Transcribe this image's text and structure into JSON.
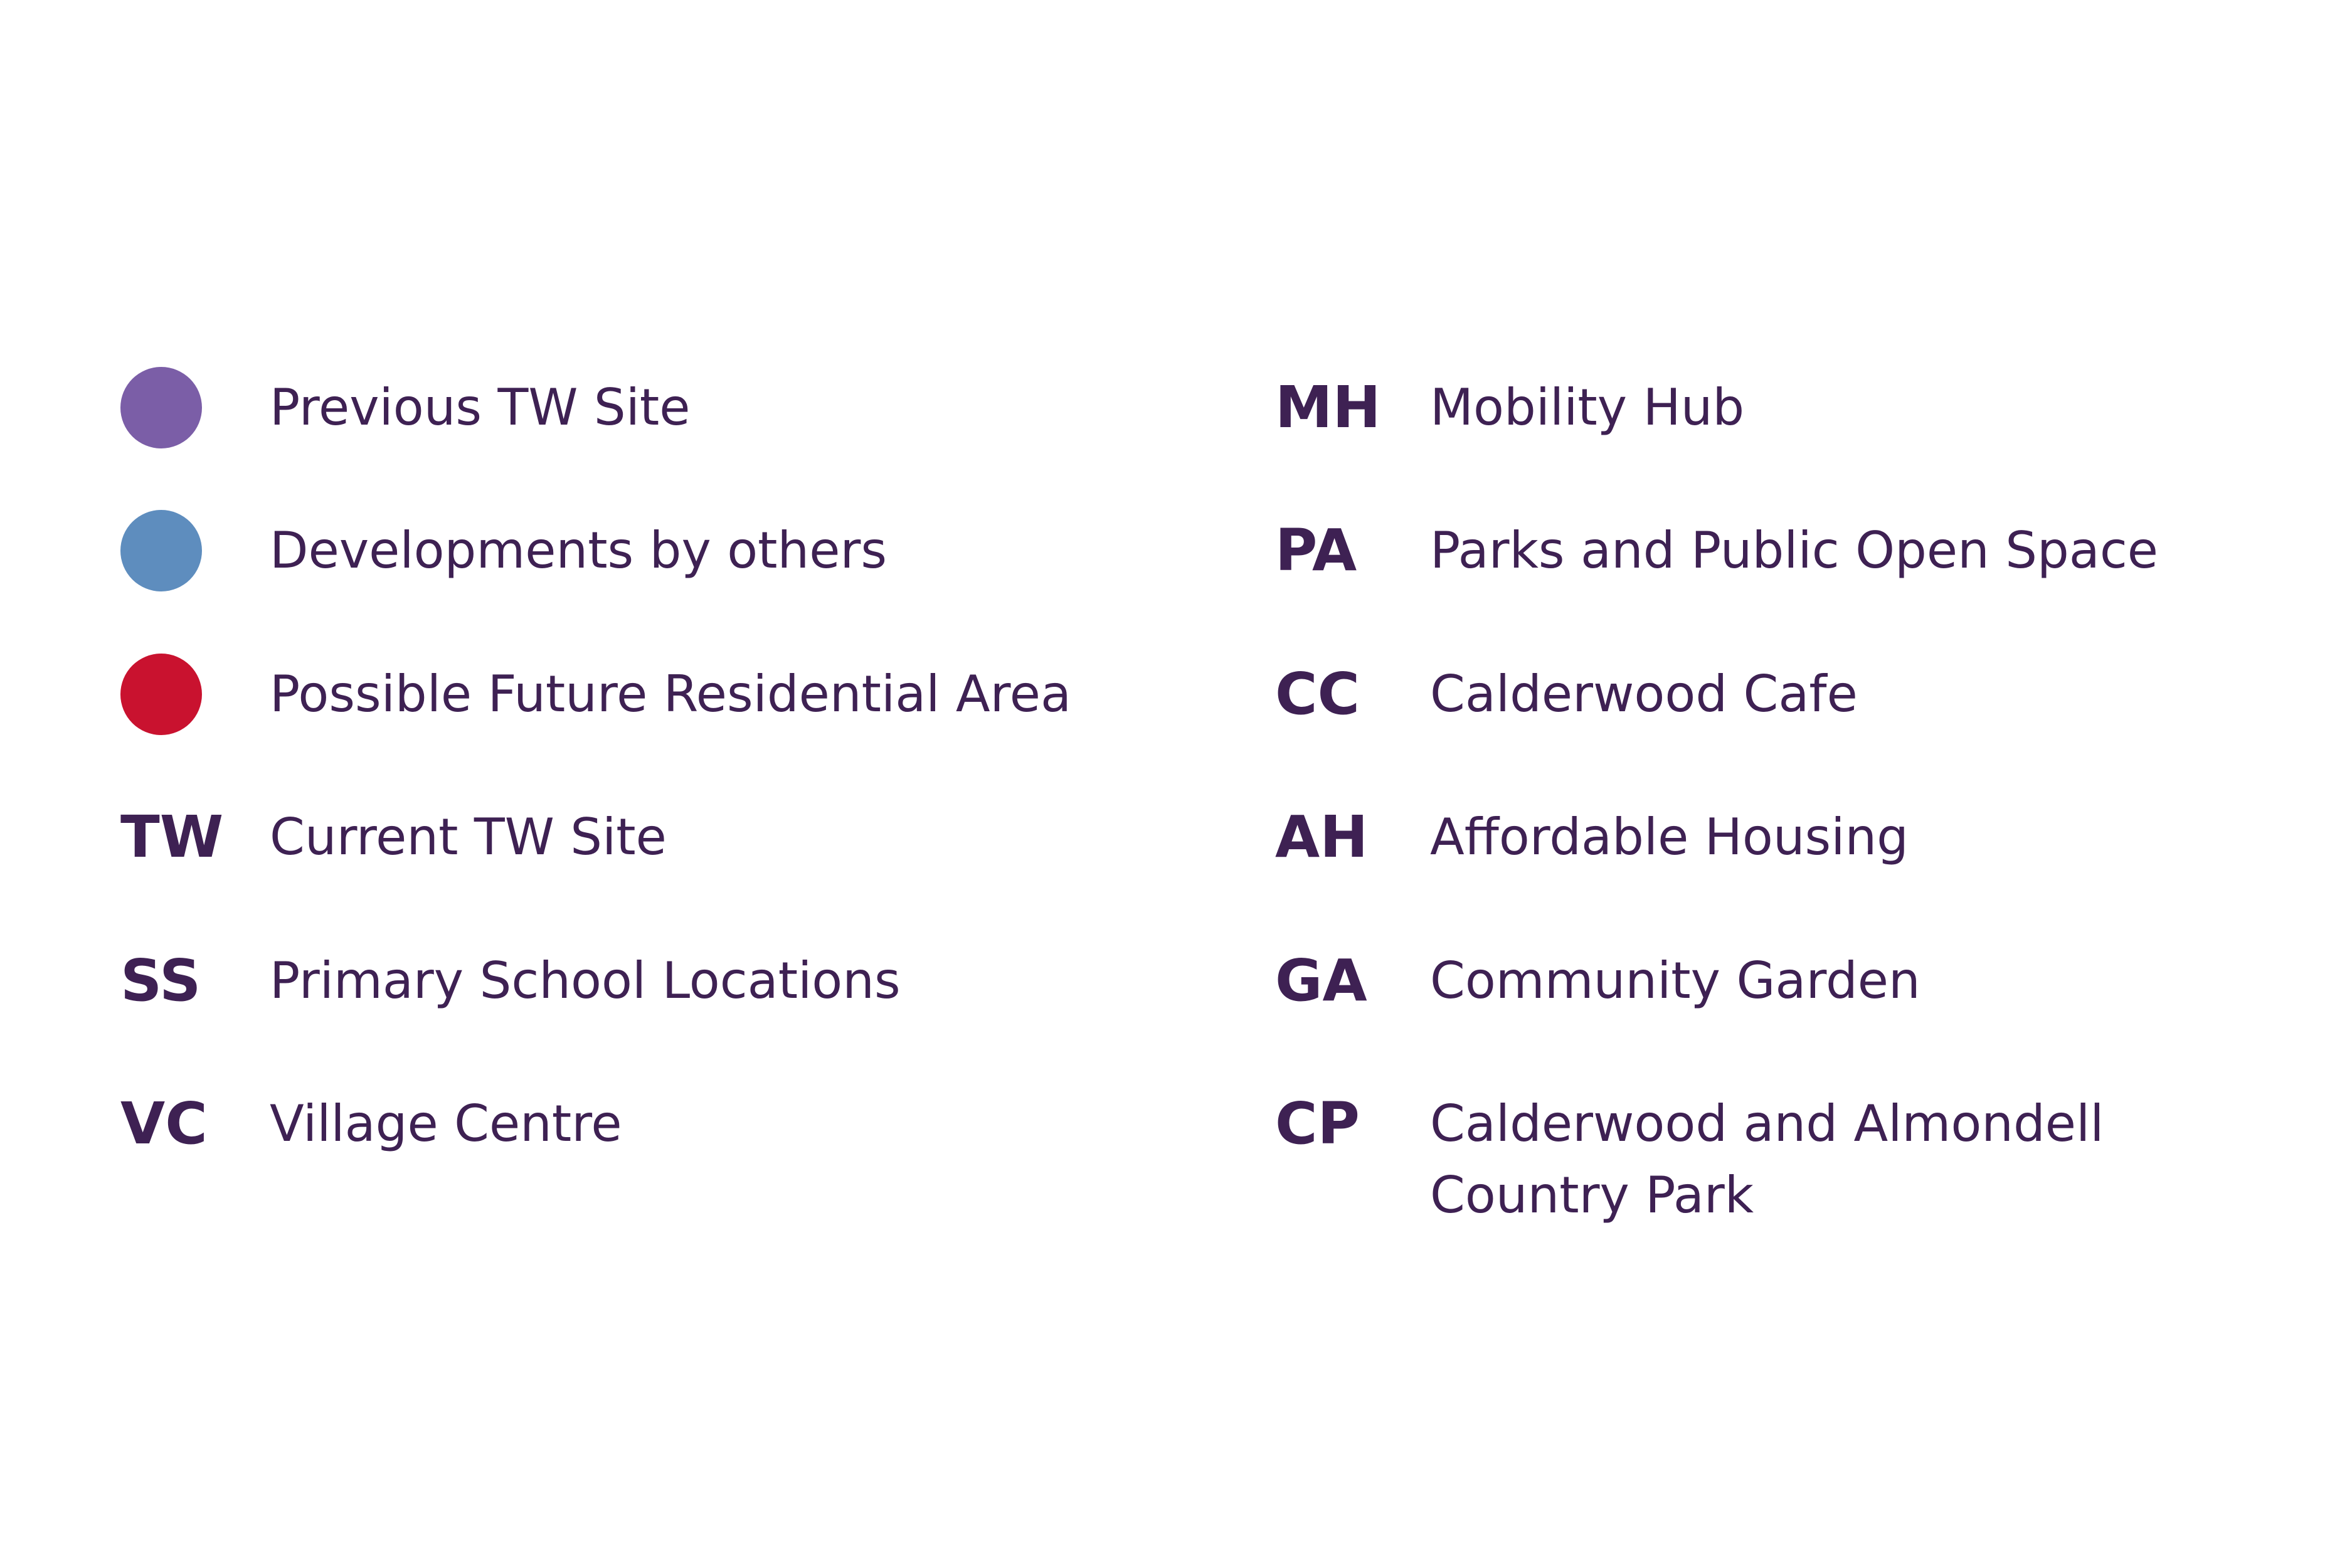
{
  "page": {
    "background_color": "#FFFFFF",
    "text_color": "#3E2153"
  },
  "legend": {
    "left_column": {
      "items": [
        {
          "type": "swatch",
          "swatch_color": "#7B5EA7",
          "swatch_name": "previous-tw-site-swatch",
          "label": "Previous TW Site"
        },
        {
          "type": "swatch",
          "swatch_color": "#5E8DBE",
          "swatch_name": "developments-by-others-swatch",
          "label": "Developments by others"
        },
        {
          "type": "swatch",
          "swatch_color": "#C9122F",
          "swatch_name": "possible-future-residential-swatch",
          "label": "Possible Future Residential Area"
        },
        {
          "type": "abbr",
          "key": "TW",
          "label": "Current TW Site"
        },
        {
          "type": "abbr",
          "key": "SS",
          "label": "Primary School Locations"
        },
        {
          "type": "abbr",
          "key": "VC",
          "label": "Village Centre"
        }
      ]
    },
    "right_column": {
      "items": [
        {
          "type": "abbr",
          "key": "MH",
          "label": "Mobility Hub"
        },
        {
          "type": "abbr",
          "key": "PA",
          "label": "Parks and Public Open Space"
        },
        {
          "type": "abbr",
          "key": "CC",
          "label": "Calderwood Cafe"
        },
        {
          "type": "abbr",
          "key": "AH",
          "label": "Affordable Housing"
        },
        {
          "type": "abbr",
          "key": "GA",
          "label": "Community Garden"
        },
        {
          "type": "abbr",
          "key": "CP",
          "label": "Calderwood and Almondell Country Park"
        }
      ]
    }
  }
}
